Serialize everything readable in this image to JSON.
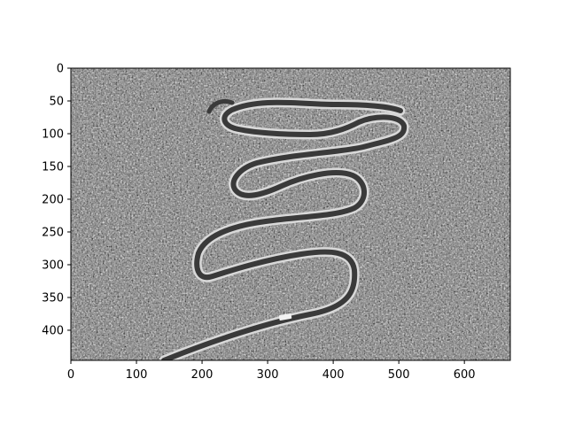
{
  "chart_data": {
    "type": "image",
    "title": "",
    "xlabel": "",
    "ylabel": "",
    "xlim": [
      0,
      670
    ],
    "ylim": [
      446,
      0
    ],
    "xticks": [
      0,
      100,
      200,
      300,
      400,
      500,
      600
    ],
    "yticks": [
      0,
      50,
      100,
      150,
      200,
      250,
      300,
      350,
      400
    ],
    "image": {
      "content": "grayscale aerial photo of a serpentine road winding through a snow-covered forest",
      "colormap": "gray"
    },
    "grid": false,
    "legend": "none"
  }
}
